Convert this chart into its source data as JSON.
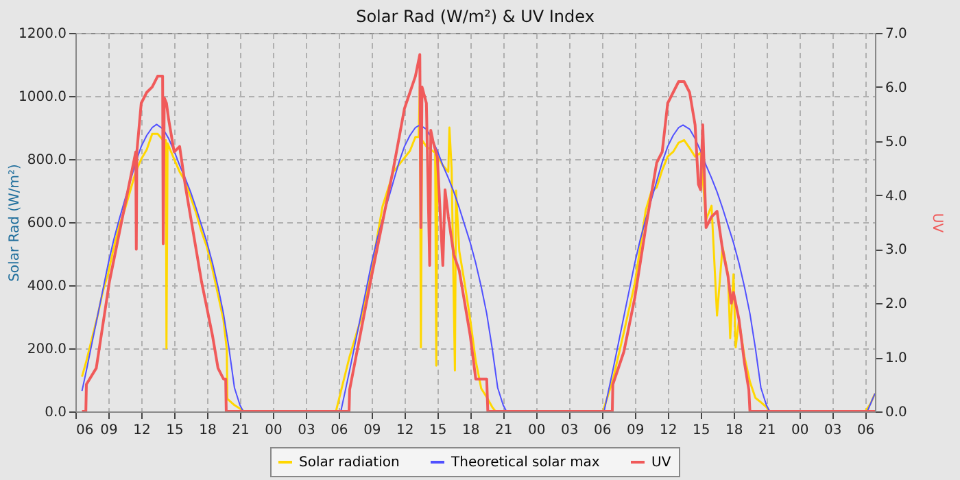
{
  "chart_data": {
    "type": "line",
    "title": "Solar Rad (W/m²) &  UV Index",
    "ylabel": "Solar Rad (W/m²)",
    "y2label": "UV",
    "grid": true,
    "legend": "bottom",
    "marker": "none",
    "xlim": [
      6,
      78.9
    ],
    "xticks": [
      {
        "value": 6,
        "label": "06"
      },
      {
        "value": 9,
        "label": "09"
      },
      {
        "value": 12,
        "label": "12"
      },
      {
        "value": 15,
        "label": "15"
      },
      {
        "value": 18,
        "label": "18"
      },
      {
        "value": 21,
        "label": "21"
      },
      {
        "value": 24,
        "label": "00"
      },
      {
        "value": 27,
        "label": "03"
      },
      {
        "value": 30,
        "label": "06"
      },
      {
        "value": 33,
        "label": "09"
      },
      {
        "value": 36,
        "label": "12"
      },
      {
        "value": 39,
        "label": "15"
      },
      {
        "value": 42,
        "label": "18"
      },
      {
        "value": 45,
        "label": "21"
      },
      {
        "value": 48,
        "label": "00"
      },
      {
        "value": 51,
        "label": "03"
      },
      {
        "value": 54,
        "label": "06"
      },
      {
        "value": 57,
        "label": "09"
      },
      {
        "value": 60,
        "label": "12"
      },
      {
        "value": 63,
        "label": "15"
      },
      {
        "value": 66,
        "label": "18"
      },
      {
        "value": 69,
        "label": "21"
      },
      {
        "value": 72,
        "label": "00"
      },
      {
        "value": 75,
        "label": "03"
      },
      {
        "value": 78,
        "label": "06"
      }
    ],
    "ylim": [
      0,
      1200
    ],
    "yticks": [
      {
        "value": 0,
        "label": "0.0"
      },
      {
        "value": 200,
        "label": "200.0"
      },
      {
        "value": 400,
        "label": "400.0"
      },
      {
        "value": 600,
        "label": "600.0"
      },
      {
        "value": 800,
        "label": "800.0"
      },
      {
        "value": 1000,
        "label": "1000.0"
      },
      {
        "value": 1200,
        "label": "1200.0"
      }
    ],
    "y2lim": [
      0,
      7
    ],
    "y2ticks": [
      {
        "value": 0,
        "label": "0.0"
      },
      {
        "value": 1,
        "label": "1.0"
      },
      {
        "value": 2,
        "label": "2.0"
      },
      {
        "value": 3,
        "label": "3.0"
      },
      {
        "value": 4,
        "label": "4.0"
      },
      {
        "value": 5,
        "label": "5.0"
      },
      {
        "value": 6,
        "label": "6.0"
      },
      {
        "value": 7,
        "label": "7.0"
      }
    ],
    "series": [
      {
        "name": "Solar radiation",
        "color": "#ffd700",
        "x": [
          6.6,
          7,
          7.5,
          8,
          8.5,
          9,
          9.5,
          10,
          10.5,
          11,
          11.5,
          12,
          12.5,
          13,
          13.5,
          14,
          14.25,
          14.3,
          14.4,
          15,
          15.5,
          16,
          16.5,
          17,
          17.5,
          18,
          18.5,
          19,
          19.5,
          19.8,
          19.85,
          20.5,
          21.4,
          29.75,
          31,
          32,
          33,
          34,
          35,
          36,
          36.5,
          37,
          37.3,
          37.4,
          37.5,
          37.6,
          38,
          38.8,
          38.9,
          39,
          39.5,
          40,
          40.1,
          40.3,
          40.6,
          40.7,
          41,
          41.5,
          42,
          42.5,
          43,
          43.5,
          44,
          44.3,
          54.1,
          55,
          56,
          57,
          58,
          58.5,
          59,
          59.5,
          60,
          60.5,
          61,
          61.5,
          62,
          62.5,
          63,
          63.5,
          64,
          64.5,
          65,
          65.5,
          65.7,
          66,
          66.2,
          66.5,
          67,
          67.5,
          68,
          68.5,
          69,
          69.3,
          78,
          78.5,
          78.9
        ],
        "values": [
          110,
          160,
          230,
          300,
          380,
          440,
          520,
          590,
          640,
          700,
          760,
          800,
          830,
          880,
          880,
          860,
          860,
          200,
          850,
          800,
          760,
          730,
          680,
          630,
          570,
          520,
          450,
          370,
          290,
          196,
          40,
          20,
          0,
          0,
          174,
          290,
          450,
          650,
          760,
          804,
          826,
          870,
          870,
          1030,
          203,
          860,
          840,
          820,
          145,
          810,
          780,
          760,
          900,
          770,
          130,
          700,
          508,
          404,
          290,
          160,
          73,
          45,
          14,
          0,
          0,
          100,
          250,
          405,
          638,
          696,
          710,
          765,
          808,
          823,
          852,
          860,
          835,
          808,
          820,
          608,
          652,
          304,
          522,
          435,
          232,
          435,
          203,
          290,
          174,
          94,
          43,
          29,
          14,
          0,
          0,
          25,
          57
        ]
      },
      {
        "name": "Theoretical solar max",
        "color": "#5050ff",
        "x": [
          6.6,
          7,
          7.5,
          8,
          8.5,
          9,
          9.5,
          10,
          10.5,
          11,
          11.5,
          12,
          12.5,
          13,
          13.4,
          14,
          14.5,
          15,
          15.5,
          16,
          16.5,
          17,
          17.5,
          18,
          18.5,
          19,
          19.5,
          20,
          20.5,
          21,
          21.3,
          30.2,
          30.6,
          31,
          31.5,
          32,
          32.5,
          33,
          33.5,
          34,
          34.5,
          35,
          35.5,
          36,
          36.5,
          37,
          37.4,
          38,
          38.5,
          39,
          39.5,
          40,
          40.5,
          41,
          41.5,
          42,
          42.5,
          43,
          43.5,
          44,
          44.5,
          45,
          45.3,
          54.2,
          54.6,
          55,
          55.5,
          56,
          56.5,
          57,
          57.5,
          58,
          58.5,
          59,
          59.5,
          60,
          60.5,
          61,
          61.4,
          62,
          62.5,
          63,
          63.5,
          64,
          64.5,
          65,
          65.5,
          66,
          66.5,
          67,
          67.5,
          68,
          68.5,
          69,
          69.3,
          78.2,
          78.9
        ],
        "values": [
          65,
          130,
          215,
          300,
          385,
          470,
          545,
          610,
          670,
          730,
          790,
          840,
          875,
          900,
          910,
          895,
          865,
          826,
          780,
          740,
          696,
          645,
          590,
          535,
          470,
          395,
          310,
          200,
          75,
          20,
          0,
          0,
          65,
          130,
          215,
          300,
          385,
          470,
          545,
          610,
          670,
          730,
          790,
          840,
          875,
          900,
          908,
          895,
          865,
          826,
          780,
          740,
          696,
          645,
          590,
          535,
          470,
          395,
          310,
          200,
          75,
          20,
          0,
          0,
          65,
          130,
          215,
          300,
          385,
          470,
          545,
          610,
          670,
          730,
          790,
          840,
          875,
          900,
          908,
          895,
          865,
          826,
          780,
          740,
          696,
          645,
          590,
          535,
          470,
          395,
          310,
          200,
          75,
          20,
          0,
          0,
          57
        ]
      },
      {
        "name": "UV",
        "color": "#f05a5a",
        "axis": "y2",
        "x": [
          6.6,
          6.95,
          7,
          7.9,
          9.1,
          10.5,
          11.5,
          11.55,
          11.6,
          12,
          12.5,
          13,
          13.5,
          13.95,
          14,
          14.1,
          14.3,
          14.5,
          15,
          15.5,
          16,
          16.5,
          17,
          17.5,
          18,
          18.5,
          19,
          19.5,
          19.7,
          19.75,
          30.95,
          31,
          33,
          35,
          36,
          37,
          37.4,
          37.5,
          37.6,
          38,
          38.3,
          38.4,
          38.6,
          39,
          39.5,
          39.7,
          40,
          40.5,
          41,
          41.5,
          42,
          42.5,
          43.5,
          43.6,
          54.95,
          55,
          56,
          57,
          58,
          59,
          59.5,
          60,
          60.5,
          61,
          61.5,
          62,
          62.5,
          62.8,
          63,
          63.2,
          63.5,
          64,
          64.5,
          65,
          65.5,
          65.8,
          66,
          66.5,
          67,
          67.4,
          67.5,
          78.9
        ],
        "values": [
          0,
          0,
          0.5,
          0.8,
          2.4,
          3.8,
          4.8,
          3,
          4.8,
          5.7,
          5.9,
          6,
          6.2,
          6.2,
          3.1,
          5.8,
          5.7,
          5.4,
          4.8,
          4.9,
          4.2,
          3.6,
          3,
          2.4,
          1.9,
          1.4,
          0.8,
          0.6,
          0.6,
          0,
          0,
          0.4,
          2.5,
          4.5,
          5.6,
          6.2,
          6.6,
          3.4,
          6,
          5.7,
          2.7,
          5.2,
          5,
          4.7,
          2.7,
          4.1,
          3.6,
          2.9,
          2.6,
          2,
          1.4,
          0.6,
          0.6,
          0,
          0,
          0.5,
          1.1,
          2.1,
          3.4,
          4.6,
          4.8,
          5.7,
          5.9,
          6.1,
          6.1,
          5.9,
          5.3,
          4.2,
          4.1,
          5.3,
          3.4,
          3.6,
          3.7,
          3,
          2.5,
          2,
          2.2,
          1.7,
          0.9,
          0.4,
          0,
          0
        ]
      }
    ]
  }
}
